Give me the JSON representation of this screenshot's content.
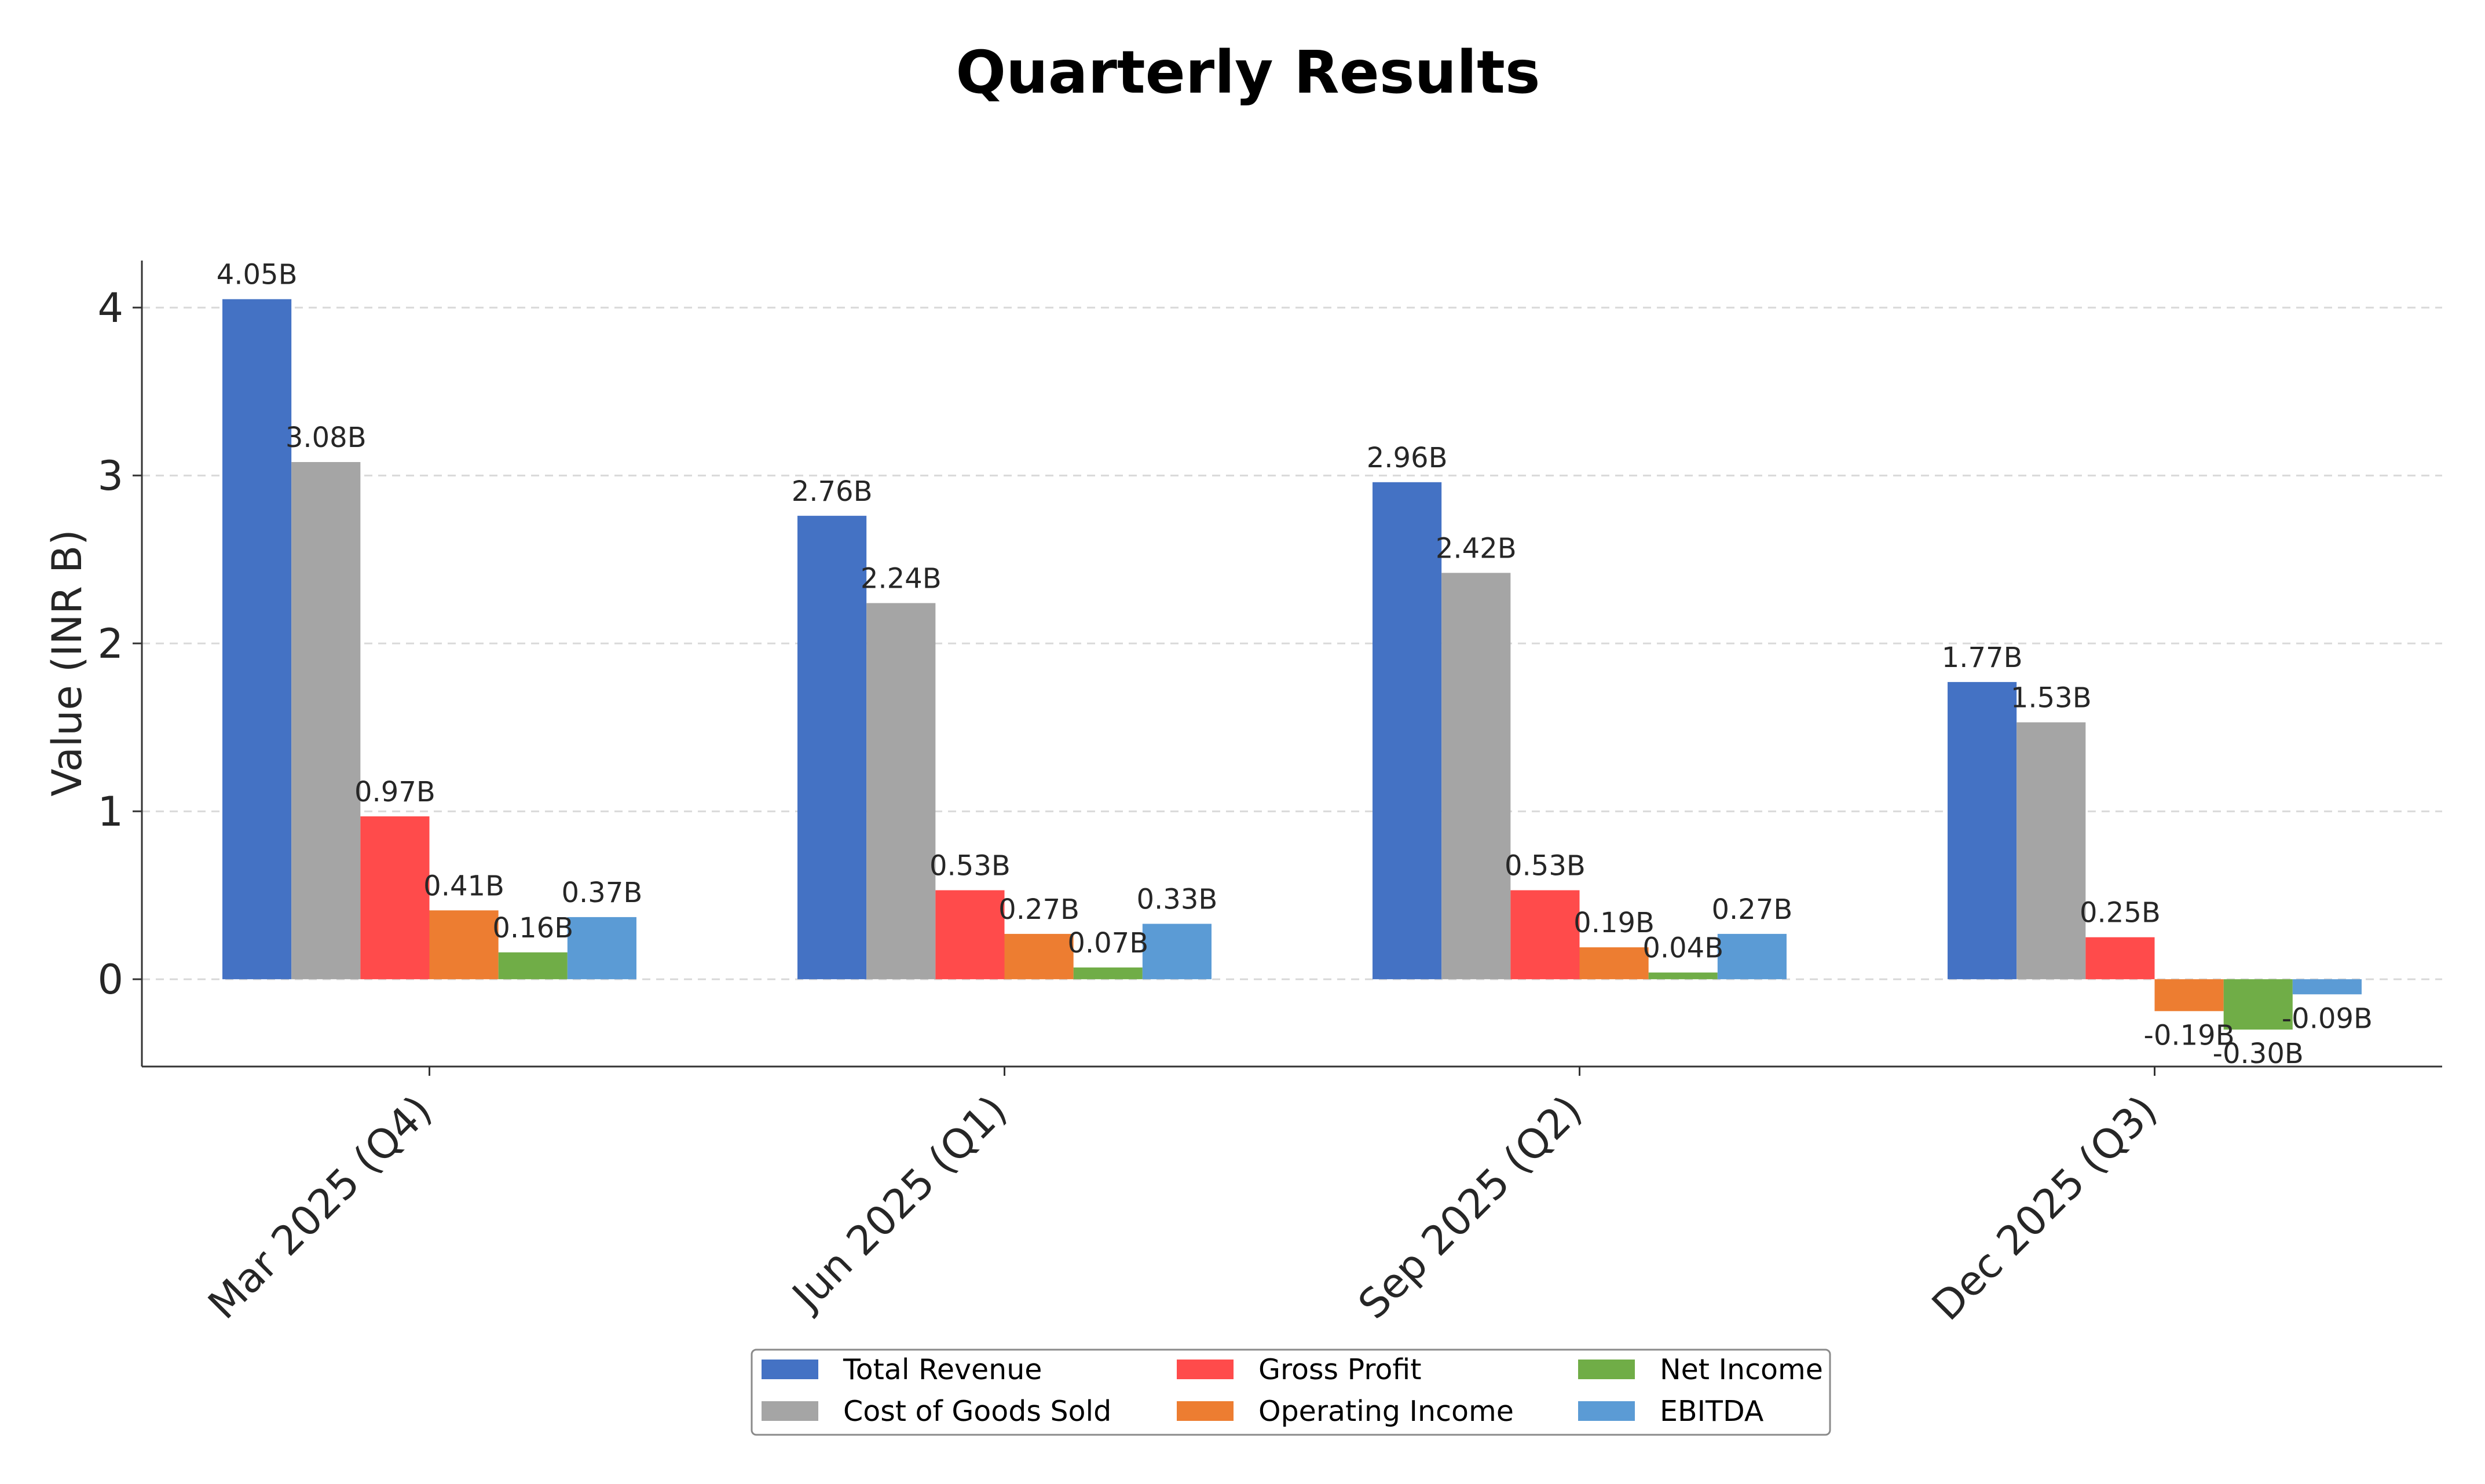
{
  "chart_data": {
    "type": "bar",
    "title": "Quarterly Results",
    "xlabel": "",
    "ylabel": "Value (INR B)",
    "ylim": [
      -0.52,
      4.28
    ],
    "yticks": [
      0,
      1,
      2,
      3,
      4
    ],
    "grid": "y-dashed",
    "legend_position": "bottom-center",
    "categories": [
      "Mar 2025 (Q4)",
      "Jun 2025 (Q1)",
      "Sep 2025 (Q2)",
      "Dec 2025 (Q3)"
    ],
    "series": [
      {
        "name": "Total Revenue",
        "color": "#4472C4",
        "values": [
          4.05,
          2.76,
          2.96,
          1.77
        ],
        "labels": [
          "4.05B",
          "2.76B",
          "2.96B",
          "1.77B"
        ]
      },
      {
        "name": "Cost of Goods Sold",
        "color": "#A5A5A5",
        "values": [
          3.08,
          2.24,
          2.42,
          1.53
        ],
        "labels": [
          "3.08B",
          "2.24B",
          "2.42B",
          "1.53B"
        ]
      },
      {
        "name": "Gross Profit",
        "color": "#FF4B4B",
        "values": [
          0.97,
          0.53,
          0.53,
          0.25
        ],
        "labels": [
          "0.97B",
          "0.53B",
          "0.53B",
          "0.25B"
        ]
      },
      {
        "name": "Operating Income",
        "color": "#ED7D31",
        "values": [
          0.41,
          0.27,
          0.19,
          -0.19
        ],
        "labels": [
          "0.41B",
          "0.27B",
          "0.19B",
          "-0.19B"
        ]
      },
      {
        "name": "Net Income",
        "color": "#70AD47",
        "values": [
          0.16,
          0.07,
          0.04,
          -0.3
        ],
        "labels": [
          "0.16B",
          "0.07B",
          "0.04B",
          "-0.30B"
        ]
      },
      {
        "name": "EBITDA",
        "color": "#5B9BD5",
        "values": [
          0.37,
          0.33,
          0.27,
          -0.09
        ],
        "labels": [
          "0.37B",
          "0.33B",
          "0.27B",
          "-0.09B"
        ]
      }
    ]
  }
}
